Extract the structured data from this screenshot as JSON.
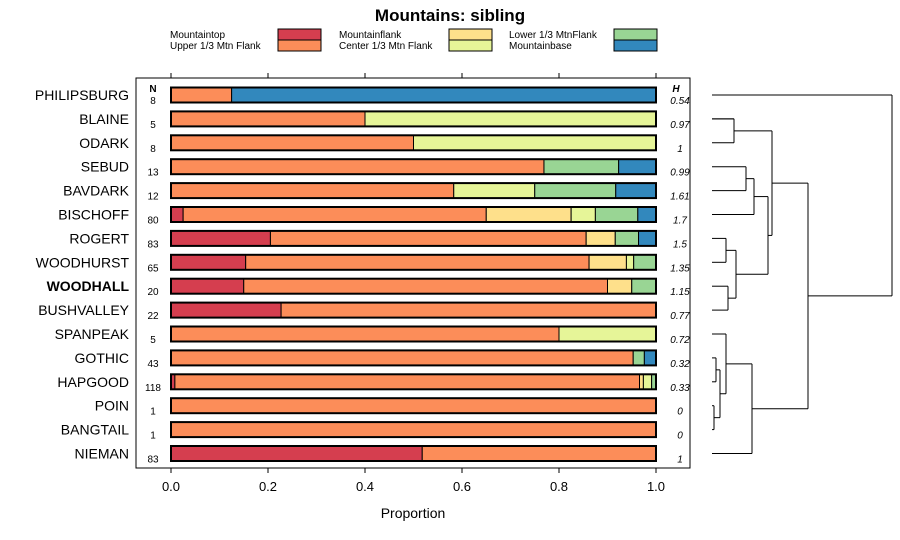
{
  "chart_data": {
    "type": "bar",
    "stacked": true,
    "orientation": "horizontal",
    "title": "Mountains: sibling",
    "xlabel": "Proportion",
    "xlim": [
      0,
      1
    ],
    "x_ticks": [
      "0.0",
      "0.2",
      "0.4",
      "0.6",
      "0.8",
      "1.0"
    ],
    "n_header": "N",
    "h_header": "H",
    "legend": [
      {
        "name": "Mountaintop",
        "color": "#d53e4f"
      },
      {
        "name": "Upper 1/3 Mtn Flank",
        "color": "#fc8d59"
      },
      {
        "name": "Mountainflank",
        "color": "#fee08b"
      },
      {
        "name": "Center 1/3 Mtn Flank",
        "color": "#e6f598"
      },
      {
        "name": "Lower 1/3 MtnFlank",
        "color": "#99d594"
      },
      {
        "name": "Mountainbase",
        "color": "#3288bd"
      }
    ],
    "series_order": [
      "Mountaintop",
      "Upper 1/3 Mtn Flank",
      "Mountainflank",
      "Center 1/3 Mtn Flank",
      "Lower 1/3 MtnFlank",
      "Mountainbase"
    ],
    "sites": [
      {
        "name": "PHILIPSBURG",
        "n": "8",
        "h": "0.54",
        "bold": false,
        "values": [
          0,
          0.125,
          0,
          0,
          0,
          0.875
        ]
      },
      {
        "name": "BLAINE",
        "n": "5",
        "h": "0.97",
        "bold": false,
        "values": [
          0,
          0.4,
          0,
          0.6,
          0,
          0
        ]
      },
      {
        "name": "ODARK",
        "n": "8",
        "h": "1",
        "bold": false,
        "values": [
          0,
          0.5,
          0,
          0.5,
          0,
          0
        ]
      },
      {
        "name": "SEBUD",
        "n": "13",
        "h": "0.99",
        "bold": false,
        "values": [
          0,
          0.769,
          0,
          0,
          0.154,
          0.077
        ]
      },
      {
        "name": "BAVDARK",
        "n": "12",
        "h": "1.61",
        "bold": false,
        "values": [
          0,
          0.583,
          0,
          0.167,
          0.167,
          0.083
        ]
      },
      {
        "name": "BISCHOFF",
        "n": "80",
        "h": "1.7",
        "bold": false,
        "values": [
          0.025,
          0.625,
          0.175,
          0.05,
          0.0875,
          0.0375
        ]
      },
      {
        "name": "ROGERT",
        "n": "83",
        "h": "1.5",
        "bold": false,
        "values": [
          0.205,
          0.651,
          0.06,
          0,
          0.048,
          0.036
        ]
      },
      {
        "name": "WOODHURST",
        "n": "65",
        "h": "1.35",
        "bold": false,
        "values": [
          0.154,
          0.708,
          0.077,
          0.015,
          0.046,
          0
        ]
      },
      {
        "name": "WOODHALL",
        "n": "20",
        "h": "1.15",
        "bold": true,
        "values": [
          0.15,
          0.75,
          0.05,
          0,
          0.05,
          0
        ]
      },
      {
        "name": "BUSHVALLEY",
        "n": "22",
        "h": "0.77",
        "bold": false,
        "values": [
          0.227,
          0.773,
          0,
          0,
          0,
          0
        ]
      },
      {
        "name": "SPANPEAK",
        "n": "5",
        "h": "0.72",
        "bold": false,
        "values": [
          0,
          0.8,
          0,
          0.2,
          0,
          0
        ]
      },
      {
        "name": "GOTHIC",
        "n": "43",
        "h": "0.32",
        "bold": false,
        "values": [
          0,
          0.953,
          0,
          0,
          0.023,
          0.023
        ]
      },
      {
        "name": "HAPGOOD",
        "n": "118",
        "h": "0.33",
        "bold": false,
        "values": [
          0.008,
          0.958,
          0.008,
          0.017,
          0.008,
          0
        ]
      },
      {
        "name": "POIN",
        "n": "1",
        "h": "0",
        "bold": false,
        "values": [
          0,
          1,
          0,
          0,
          0,
          0
        ]
      },
      {
        "name": "BANGTAIL",
        "n": "1",
        "h": "0",
        "bold": false,
        "values": [
          0,
          1,
          0,
          0,
          0,
          0
        ]
      },
      {
        "name": "NIEMAN",
        "n": "83",
        "h": "1",
        "bold": false,
        "values": [
          0.518,
          0.482,
          0,
          0,
          0,
          0
        ]
      }
    ]
  }
}
